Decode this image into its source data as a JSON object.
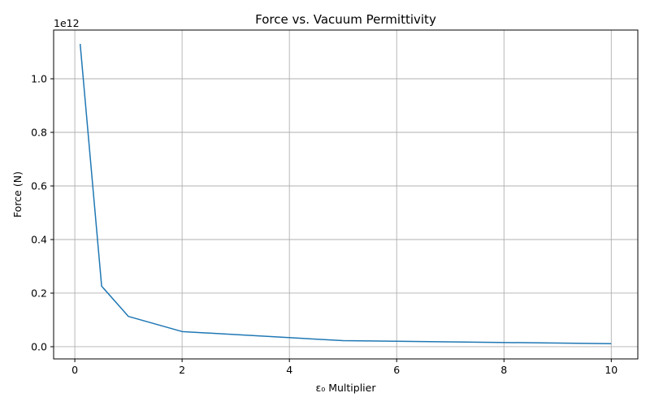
{
  "chart_data": {
    "type": "line",
    "title": "Force vs. Vacuum Permittivity",
    "xlabel": "ε₀ Multiplier",
    "ylabel": "Force (N)",
    "y_offset_label": "1e12",
    "xlim": [
      -0.395,
      10.495
    ],
    "ylim": [
      -0.0455,
      1.1818
    ],
    "x_ticks": [
      0,
      2,
      4,
      6,
      8,
      10
    ],
    "x_tick_labels": [
      "0",
      "2",
      "4",
      "6",
      "8",
      "10"
    ],
    "y_ticks": [
      0.0,
      0.2,
      0.4,
      0.6,
      0.8,
      1.0
    ],
    "y_tick_labels": [
      "0.0",
      "0.2",
      "0.4",
      "0.6",
      "0.8",
      "1.0"
    ],
    "grid": true,
    "series": [
      {
        "color": "#1f77b4",
        "x": [
          0.1,
          0.5,
          1,
          2,
          5,
          10
        ],
        "y": [
          1.13,
          0.226,
          0.113,
          0.0565,
          0.0226,
          0.0113
        ]
      }
    ]
  }
}
